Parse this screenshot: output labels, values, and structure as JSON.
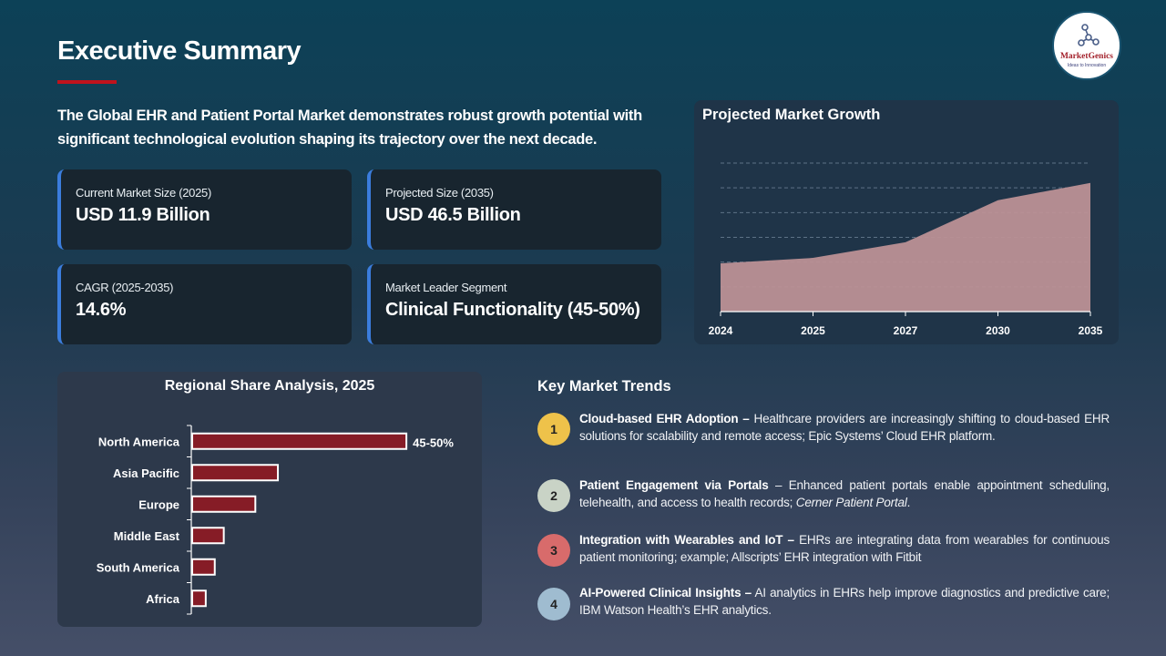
{
  "header": {
    "title": "Executive Summary",
    "intro": "The Global EHR and Patient Portal Market demonstrates robust growth potential with significant technological evolution shaping its trajectory over the next decade."
  },
  "logo": {
    "name": "MarketGenics",
    "tagline": "Ideas to Innovation"
  },
  "kpis": [
    {
      "label": "Current Market Size (2025)",
      "value": "USD 11.9 Billion"
    },
    {
      "label": "Projected Size (2035)",
      "value": "USD 46.5 Billion"
    },
    {
      "label": "CAGR (2025-2035)",
      "value": "14.6%"
    },
    {
      "label": "Market Leader Segment",
      "value": "Clinical Functionality (45-50%)"
    }
  ],
  "colors": {
    "accent": "#c0121c",
    "kpi_border": "#3b7ddd",
    "area_fill": "#bc9196",
    "bar_fill": "#861c26",
    "trend_colors": [
      "#eec24a",
      "#c9d3c6",
      "#d86b6b",
      "#9fbcd0"
    ]
  },
  "trends_title": "Key Market Trends",
  "trends": [
    {
      "num": "1",
      "title": "Cloud-based EHR Adoption –",
      "text": " Healthcare providers are increasingly shifting to cloud-based EHR solutions for scalability and remote access; Epic Systems’ Cloud EHR platform."
    },
    {
      "num": "2",
      "title": "Patient Engagement via Portals",
      "text": " – Enhanced patient portals enable appointment scheduling, telehealth, and access to health records; ",
      "italic": "Cerner Patient Portal",
      "tail": "."
    },
    {
      "num": "3",
      "title": "Integration with Wearables and IoT –",
      "text": " EHRs are integrating data from wearables for continuous patient monitoring; example; Allscripts’ EHR integration with Fitbit"
    },
    {
      "num": "4",
      "title": "AI-Powered Clinical Insights –",
      "text": " AI analytics in EHRs help improve diagnostics and predictive care; IBM Watson Health’s EHR analytics."
    }
  ],
  "chart_data": [
    {
      "type": "area",
      "title": "Projected Market Growth",
      "categories": [
        "2024",
        "2025",
        "2027",
        "2030",
        "2035"
      ],
      "values": [
        1.95,
        2.17,
        2.8,
        4.5,
        5.2
      ],
      "ylim": [
        0,
        6
      ],
      "grid": true,
      "y_tick_labels": false,
      "xlabel": "",
      "ylabel": ""
    },
    {
      "type": "bar",
      "orientation": "horizontal",
      "title": "Regional Share Analysis, 2025",
      "categories": [
        "North America",
        "Asia Pacific",
        "Europe",
        "Middle East",
        "South America",
        "Africa"
      ],
      "values": [
        47.5,
        19,
        14,
        7,
        5,
        3
      ],
      "data_labels": [
        "45-50%",
        "",
        "",
        "",
        "",
        ""
      ],
      "xlabel": "",
      "ylabel": ""
    }
  ]
}
